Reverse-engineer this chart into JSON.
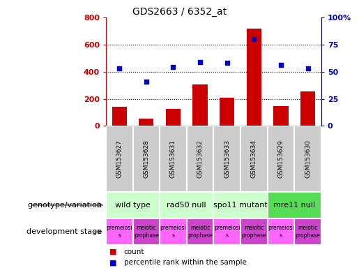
{
  "title": "GDS2663 / 6352_at",
  "samples": [
    "GSM153627",
    "GSM153628",
    "GSM153631",
    "GSM153632",
    "GSM153633",
    "GSM153634",
    "GSM153629",
    "GSM153630"
  ],
  "counts": [
    140,
    55,
    125,
    305,
    210,
    720,
    148,
    255
  ],
  "percentile_ranks": [
    53,
    41,
    54,
    59,
    58,
    80,
    56,
    53
  ],
  "ylim_left": [
    0,
    800
  ],
  "ylim_right": [
    0,
    100
  ],
  "yticks_left": [
    0,
    200,
    400,
    600,
    800
  ],
  "ytick_labels_left": [
    "0",
    "200",
    "400",
    "600",
    "800"
  ],
  "yticks_right": [
    0,
    25,
    50,
    75,
    100
  ],
  "ytick_labels_right": [
    "0",
    "25",
    "50",
    "75",
    "100%"
  ],
  "bar_color": "#cc0000",
  "dot_color": "#0000cc",
  "genotype_groups": [
    {
      "label": "wild type",
      "start": 0,
      "end": 2,
      "color": "#ccffcc"
    },
    {
      "label": "rad50 null",
      "start": 2,
      "end": 4,
      "color": "#ccffcc"
    },
    {
      "label": "spo11 mutant",
      "start": 4,
      "end": 6,
      "color": "#ccffcc"
    },
    {
      "label": "mre11 null",
      "start": 6,
      "end": 8,
      "color": "#55dd55"
    }
  ],
  "dev_stage_groups": [
    {
      "label": "premeiosi\ns",
      "start": 0,
      "end": 1,
      "color": "#ff66ff"
    },
    {
      "label": "meiotic\nprophase",
      "start": 1,
      "end": 2,
      "color": "#cc44cc"
    },
    {
      "label": "premeiosi\ns",
      "start": 2,
      "end": 3,
      "color": "#ff66ff"
    },
    {
      "label": "meiotic\nprophase",
      "start": 3,
      "end": 4,
      "color": "#cc44cc"
    },
    {
      "label": "premeiosi\ns",
      "start": 4,
      "end": 5,
      "color": "#ff66ff"
    },
    {
      "label": "meiotic\nprophase",
      "start": 5,
      "end": 6,
      "color": "#cc44cc"
    },
    {
      "label": "premeiosi\ns",
      "start": 6,
      "end": 7,
      "color": "#ff66ff"
    },
    {
      "label": "meiotic\nprophase",
      "start": 7,
      "end": 8,
      "color": "#cc44cc"
    }
  ],
  "tick_color_left": "#cc0000",
  "tick_color_right": "#0000cc",
  "sample_box_color": "#cccccc",
  "legend_count_label": "count",
  "legend_pct_label": "percentile rank within the sample",
  "left_label_geno": "genotype/variation",
  "left_label_dev": "development stage"
}
